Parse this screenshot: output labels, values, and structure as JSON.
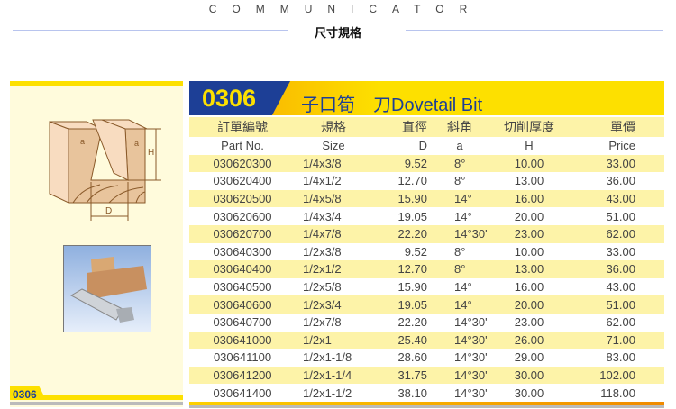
{
  "brand": "COMMUNICATOR",
  "section_title": "尺寸規格",
  "product": {
    "code": "0306",
    "title": "子口筍　刀Dovetail Bit",
    "side_code": "0306"
  },
  "diagram": {
    "label_d": "D",
    "label_h": "H",
    "label_a": "a"
  },
  "colors": {
    "blue": "#1d3f96",
    "yellow": "#fde000",
    "stripe": "#fdf3a8",
    "orange": "#f08a00"
  },
  "table": {
    "headers_cn": [
      "訂單編號",
      "規格",
      "直徑",
      "斜角",
      "切削厚度",
      "單價"
    ],
    "headers_en": [
      "Part No.",
      "Size",
      "D",
      "a",
      "H",
      "Price"
    ],
    "rows": [
      [
        "030620300",
        "1/4x3/8",
        "9.52",
        "8°",
        "10.00",
        "33.00"
      ],
      [
        "030620400",
        "1/4x1/2",
        "12.70",
        "8°",
        "13.00",
        "36.00"
      ],
      [
        "030620500",
        "1/4x5/8",
        "15.90",
        "14°",
        "16.00",
        "43.00"
      ],
      [
        "030620600",
        "1/4x3/4",
        "19.05",
        "14°",
        "20.00",
        "51.00"
      ],
      [
        "030620700",
        "1/4x7/8",
        "22.20",
        "14°30'",
        "23.00",
        "62.00"
      ],
      [
        "030640300",
        "1/2x3/8",
        "9.52",
        "8°",
        "10.00",
        "33.00"
      ],
      [
        "030640400",
        "1/2x1/2",
        "12.70",
        "8°",
        "13.00",
        "36.00"
      ],
      [
        "030640500",
        "1/2x5/8",
        "15.90",
        "14°",
        "16.00",
        "43.00"
      ],
      [
        "030640600",
        "1/2x3/4",
        "19.05",
        "14°",
        "20.00",
        "51.00"
      ],
      [
        "030640700",
        "1/2x7/8",
        "22.20",
        "14°30'",
        "23.00",
        "62.00"
      ],
      [
        "030641000",
        "1/2x1",
        "25.40",
        "14°30'",
        "26.00",
        "71.00"
      ],
      [
        "030641100",
        "1/2x1-1/8",
        "28.60",
        "14°30'",
        "29.00",
        "83.00"
      ],
      [
        "030641200",
        "1/2x1-1/4",
        "31.75",
        "14°30'",
        "30.00",
        "102.00"
      ],
      [
        "030641400",
        "1/2x1-1/2",
        "38.10",
        "14°30'",
        "30.00",
        "118.00"
      ]
    ]
  }
}
